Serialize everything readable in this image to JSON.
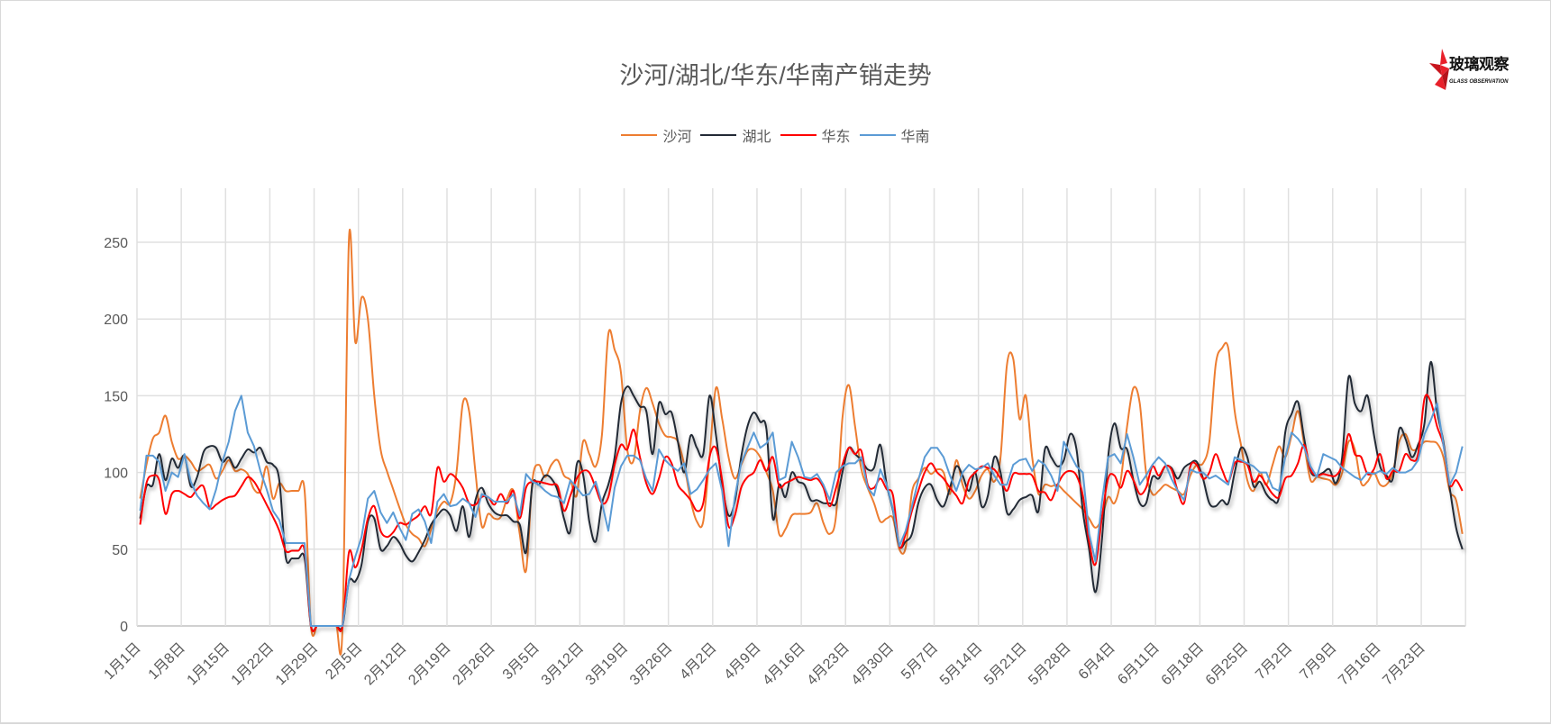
{
  "chart_data": {
    "type": "line",
    "title": "沙河/湖北/华东/华南产销走势",
    "legend_position": "top",
    "grid": true,
    "ylim": [
      0,
      280
    ],
    "y_ticks": [
      "0",
      "50",
      "100",
      "150",
      "200",
      "250"
    ],
    "x_tick_labels": [
      "1月1日",
      "1月8日",
      "1月15日",
      "1月22日",
      "1月29日",
      "2月5日",
      "2月12日",
      "2月19日",
      "2月26日",
      "3月5日",
      "3月12日",
      "3月19日",
      "3月26日",
      "4月2日",
      "4月9日",
      "4月16日",
      "4月23日",
      "4月30日",
      "5月7日",
      "5月14日",
      "5月21日",
      "5月28日",
      "6月4日",
      "6月11日",
      "6月18日",
      "6月25日",
      "7月2日",
      "7月9日",
      "7月16日",
      "7月23日"
    ],
    "x": [
      "1月1日",
      "1月2日",
      "1月3日",
      "1月4日",
      "1月5日",
      "1月6日",
      "1月7日",
      "1月8日",
      "1月9日",
      "1月10日",
      "1月11日",
      "1月12日",
      "1月13日",
      "1月14日",
      "1月15日",
      "1月16日",
      "1月17日",
      "1月18日",
      "1月19日",
      "1月20日",
      "1月21日",
      "1月22日",
      "1月23日",
      "1月24日",
      "1月25日",
      "1月26日",
      "1月27日",
      "1月28日",
      "1月29日",
      "1月30日",
      "1月31日",
      "2月1日",
      "2月2日",
      "2月3日",
      "2月4日",
      "2月5日",
      "2月6日",
      "2月7日",
      "2月8日",
      "2月9日",
      "2月10日",
      "2月11日",
      "2月12日",
      "2月13日",
      "2月14日",
      "2月15日",
      "2月16日",
      "2月17日",
      "2月18日",
      "2月19日",
      "2月20日",
      "2月21日",
      "2月22日",
      "2月23日",
      "2月24日",
      "2月25日",
      "2月26日",
      "2月27日",
      "2月28日",
      "3月1日",
      "3月2日",
      "3月3日",
      "3月4日",
      "3月5日",
      "3月6日",
      "3月7日",
      "3月8日",
      "3月9日",
      "3月10日",
      "3月11日",
      "3月12日",
      "3月13日",
      "3月14日",
      "3月15日",
      "3月16日",
      "3月17日",
      "3月18日",
      "3月19日",
      "3月20日",
      "3月21日",
      "3月22日",
      "3月23日",
      "3月24日",
      "3月25日",
      "3月26日",
      "3月27日",
      "3月28日",
      "3月29日",
      "3月30日",
      "3月31日",
      "4月1日",
      "4月2日",
      "4月3日",
      "4月4日",
      "4月5日",
      "4月6日",
      "4月7日",
      "4月8日",
      "4月9日",
      "4月10日",
      "4月11日",
      "4月12日",
      "4月13日",
      "4月14日",
      "4月15日",
      "4月16日",
      "4月17日",
      "4月18日",
      "4月19日",
      "4月20日",
      "4月21日",
      "4月22日",
      "4月23日",
      "4月24日",
      "4月25日",
      "4月26日",
      "4月27日",
      "4月28日",
      "4月29日",
      "4月30日",
      "5月1日",
      "5月2日",
      "5月3日",
      "5月4日",
      "5月5日",
      "5月6日",
      "5月7日",
      "5月8日",
      "5月9日",
      "5月10日",
      "5月11日",
      "5月12日",
      "5月13日",
      "5月14日",
      "5月15日",
      "5月16日",
      "5月17日",
      "5月18日",
      "5月19日",
      "5月20日",
      "5月21日",
      "5月22日",
      "5月23日",
      "5月24日",
      "5月25日",
      "5月26日",
      "5月27日",
      "5月28日",
      "5月29日",
      "5月30日",
      "5月31日",
      "6月1日",
      "6月2日",
      "6月3日",
      "6月4日",
      "6月5日",
      "6月6日",
      "6月7日",
      "6月8日",
      "6月9日",
      "6月10日",
      "6月11日",
      "6月12日",
      "6月13日",
      "6月14日",
      "6月15日",
      "6月16日",
      "6月17日",
      "6月18日",
      "6月19日",
      "6月20日",
      "6月21日",
      "6月22日",
      "6月23日",
      "6月24日",
      "6月25日",
      "6月26日",
      "6月27日",
      "6月28日",
      "6月29日",
      "6月30日",
      "7月1日",
      "7月2日",
      "7月3日",
      "7月4日",
      "7月5日",
      "7月6日",
      "7月7日",
      "7月8日",
      "7月9日",
      "7月10日",
      "7月11日",
      "7月12日",
      "7月13日",
      "7月14日",
      "7月15日",
      "7月16日",
      "7月17日",
      "7月18日",
      "7月19日",
      "7月20日",
      "7月21日",
      "7月22日",
      "7月23日",
      "7月24日",
      "7月25日",
      "7月26日",
      "7月27日",
      "7月28日",
      "7月29日"
    ],
    "series": [
      {
        "name": "沙河",
        "color": "#ED7D31",
        "smooth": true,
        "values": [
          83,
          105,
          122,
          126,
          137,
          120,
          109,
          111,
          107,
          101,
          103,
          105,
          96,
          101,
          108,
          101,
          102,
          99,
          89,
          88,
          104,
          83,
          93,
          88,
          88,
          88,
          88,
          0,
          0,
          0,
          0,
          0,
          0,
          252,
          185,
          214,
          200,
          150,
          115,
          101,
          89,
          77,
          66,
          60,
          57,
          52,
          63,
          75,
          81,
          80,
          100,
          145,
          140,
          100,
          65,
          73,
          70,
          71,
          83,
          88,
          60,
          36,
          95,
          105,
          97,
          105,
          108,
          98,
          95,
          85,
          120,
          112,
          104,
          125,
          190,
          180,
          165,
          115,
          108,
          140,
          155,
          145,
          132,
          124,
          123,
          120,
          105,
          82,
          68,
          68,
          110,
          155,
          135,
          110,
          96,
          105,
          114,
          115,
          110,
          100,
          88,
          60,
          63,
          72,
          73,
          73,
          74,
          80,
          67,
          60,
          72,
          135,
          157,
          130,
          102,
          90,
          80,
          68,
          70,
          70,
          50,
          51,
          87,
          96,
          103,
          99,
          102,
          100,
          86,
          108,
          92,
          83,
          88,
          98,
          102,
          94,
          110,
          170,
          174,
          135,
          150,
          110,
          86,
          92,
          91,
          92,
          88,
          84,
          80,
          76,
          70,
          64,
          70,
          84,
          80,
          95,
          130,
          155,
          145,
          100,
          86,
          88,
          92,
          90,
          88,
          86,
          98,
          105,
          106,
          120,
          170,
          181,
          181,
          140,
          118,
          95,
          88,
          100,
          92,
          105,
          117,
          110,
          124,
          140,
          118,
          95,
          97,
          96,
          95,
          92,
          100,
          120,
          115,
          93,
          94,
          100,
          92,
          92,
          100,
          120,
          125,
          115,
          116,
          120,
          120,
          119,
          110,
          88,
          82,
          60
        ]
      },
      {
        "name": "湖北",
        "color": "#232A36",
        "smooth": true,
        "values": [
          70,
          91,
          92,
          112,
          95,
          109,
          103,
          111,
          91,
          97,
          113,
          117,
          116,
          107,
          110,
          103,
          109,
          115,
          113,
          116,
          107,
          105,
          95,
          45,
          44,
          44,
          44,
          0,
          0,
          0,
          0,
          0,
          0,
          29,
          29,
          40,
          68,
          70,
          50,
          52,
          58,
          54,
          46,
          42,
          48,
          56,
          66,
          72,
          76,
          72,
          62,
          78,
          58,
          82,
          90,
          80,
          74,
          72,
          72,
          68,
          66,
          48,
          92,
          92,
          98,
          96,
          88,
          70,
          62,
          105,
          99,
          68,
          55,
          80,
          92,
          110,
          145,
          156,
          150,
          143,
          140,
          112,
          145,
          138,
          139,
          120,
          100,
          124,
          116,
          112,
          150,
          125,
          92,
          72,
          81,
          110,
          130,
          139,
          133,
          128,
          70,
          92,
          84,
          100,
          94,
          92,
          82,
          82,
          80,
          80,
          80,
          100,
          116,
          112,
          108,
          102,
          103,
          118,
          92,
          75,
          52,
          55,
          60,
          80,
          90,
          92,
          82,
          78,
          90,
          104,
          98,
          88,
          100,
          78,
          85,
          110,
          100,
          74,
          76,
          82,
          84,
          85,
          75,
          115,
          110,
          104,
          108,
          125,
          115,
          75,
          50,
          22,
          55,
          110,
          132,
          116,
          115,
          95,
          80,
          80,
          97,
          96,
          104,
          103,
          96,
          103,
          106,
          107,
          96,
          80,
          78,
          82,
          80,
          100,
          116,
          110,
          91,
          94,
          86,
          82,
          84,
          126,
          138,
          146,
          122,
          101,
          98,
          100,
          102,
          93,
          110,
          162,
          145,
          140,
          150,
          125,
          104,
          98,
          96,
          128,
          122,
          110,
          118,
          132,
          172,
          140,
          120,
          90,
          64,
          50
        ]
      },
      {
        "name": "华东",
        "color": "#FF0000",
        "smooth": true,
        "values": [
          66,
          93,
          98,
          95,
          73,
          86,
          88,
          86,
          84,
          89,
          91,
          77,
          79,
          82,
          84,
          85,
          91,
          97,
          94,
          87,
          79,
          71,
          62,
          49,
          49,
          49,
          49,
          0,
          0,
          0,
          0,
          0,
          0,
          48,
          38,
          50,
          70,
          78,
          62,
          58,
          61,
          67,
          66,
          69,
          72,
          78,
          73,
          103,
          94,
          99,
          96,
          90,
          80,
          79,
          84,
          84,
          79,
          86,
          80,
          88,
          70,
          90,
          94,
          94,
          93,
          92,
          91,
          75,
          85,
          96,
          101,
          100,
          90,
          80,
          84,
          105,
          118,
          115,
          128,
          110,
          93,
          86,
          96,
          110,
          106,
          92,
          87,
          82,
          75,
          80,
          110,
          116,
          95,
          65,
          72,
          90,
          97,
          100,
          108,
          101,
          110,
          91,
          93,
          95,
          97,
          96,
          95,
          96,
          90,
          78,
          90,
          105,
          116,
          112,
          114,
          92,
          90,
          96,
          89,
          85,
          52,
          60,
          75,
          88,
          100,
          106,
          100,
          96,
          90,
          85,
          80,
          95,
          100,
          104,
          103,
          102,
          96,
          88,
          99,
          99,
          99,
          98,
          88,
          87,
          82,
          92,
          99,
          101,
          98,
          85,
          55,
          40,
          70,
          96,
          98,
          90,
          101,
          95,
          86,
          90,
          104,
          98,
          104,
          102,
          88,
          80,
          104,
          105,
          96,
          100,
          112,
          102,
          94,
          106,
          107,
          105,
          94,
          98,
          92,
          86,
          84,
          96,
          98,
          106,
          118,
          102,
          98,
          99,
          98,
          98,
          105,
          125,
          112,
          110,
          99,
          102,
          112,
          96,
          101,
          101,
          112,
          108,
          112,
          148,
          146,
          130,
          118,
          92,
          95,
          88
        ]
      },
      {
        "name": "华南",
        "color": "#5B9BD5",
        "smooth": false,
        "values": [
          75,
          111,
          111,
          107,
          88,
          100,
          97,
          112,
          94,
          85,
          80,
          76,
          89,
          107,
          120,
          140,
          150,
          126,
          117,
          101,
          89,
          75,
          69,
          54,
          54,
          54,
          54,
          0,
          0,
          0,
          0,
          0,
          0,
          30,
          45,
          58,
          83,
          88,
          74,
          67,
          74,
          64,
          56,
          73,
          76,
          68,
          54,
          81,
          86,
          78,
          79,
          83,
          80,
          71,
          86,
          84,
          81,
          81,
          81,
          86,
          72,
          99,
          94,
          92,
          88,
          85,
          84,
          80,
          95,
          90,
          85,
          86,
          94,
          80,
          62,
          90,
          104,
          111,
          111,
          108,
          96,
          88,
          115,
          108,
          104,
          101,
          106,
          86,
          89,
          95,
          102,
          106,
          88,
          52,
          84,
          106,
          116,
          126,
          116,
          119,
          126,
          95,
          97,
          120,
          110,
          97,
          96,
          99,
          92,
          82,
          100,
          104,
          106,
          106,
          110,
          90,
          85,
          102,
          92,
          76,
          52,
          62,
          78,
          95,
          110,
          116,
          116,
          110,
          98,
          88,
          100,
          105,
          102,
          103,
          106,
          98,
          92,
          92,
          105,
          108,
          109,
          101,
          108,
          105,
          98,
          88,
          120,
          112,
          104,
          100,
          60,
          42,
          80,
          110,
          112,
          106,
          125,
          110,
          92,
          98,
          105,
          110,
          106,
          96,
          88,
          82,
          102,
          100,
          100,
          96,
          98,
          95,
          92,
          110,
          108,
          106,
          104,
          100,
          100,
          90,
          88,
          110,
          126,
          122,
          116,
          104,
          97,
          112,
          110,
          108,
          103,
          100,
          97,
          95,
          100,
          99,
          101,
          99,
          103,
          100,
          100,
          102,
          108,
          125,
          134,
          145,
          118,
          92,
          100,
          117
        ]
      }
    ]
  },
  "logo": {
    "text": "玻璃观察",
    "subtext": "GLASS OBSERVATION",
    "color": "#E8202A"
  }
}
